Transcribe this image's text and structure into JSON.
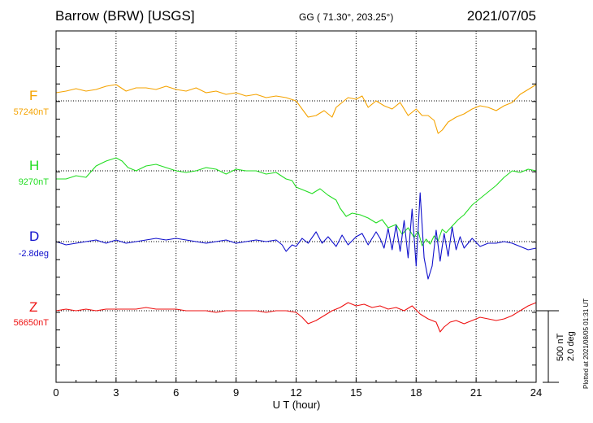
{
  "header": {
    "station": "Barrow (BRW)  [USGS]",
    "coords": "GG ( 71.30°, 203.25°)",
    "date": "2021/07/05"
  },
  "footer": {
    "plotted": "Plotted at 2021/08/05 01:31  UT",
    "scale_nt": "500 nT",
    "scale_deg": "2.0 deg"
  },
  "chart_data": {
    "type": "line",
    "xlabel": "U T (hour)",
    "xlim": [
      0,
      24
    ],
    "xticks": [
      0,
      3,
      6,
      9,
      12,
      15,
      18,
      21,
      24
    ],
    "grid": true,
    "series": [
      {
        "name": "F",
        "baseline_label": "57240nT",
        "color": "#f5a300",
        "x": [
          0,
          0.5,
          1,
          1.5,
          2,
          2.5,
          3,
          3.5,
          4,
          4.5,
          5,
          5.5,
          6,
          6.5,
          7,
          7.5,
          8,
          8.5,
          9,
          9.5,
          10,
          10.5,
          11,
          11.5,
          12,
          12.3,
          12.6,
          13,
          13.4,
          13.8,
          14,
          14.3,
          14.6,
          15,
          15.3,
          15.6,
          16,
          16.4,
          16.8,
          17.2,
          17.6,
          18,
          18.3,
          18.6,
          18.9,
          19.1,
          19.3,
          19.6,
          20,
          20.4,
          20.8,
          21.2,
          21.6,
          22,
          22.4,
          22.8,
          23.2,
          23.6,
          24
        ],
        "y": [
          10,
          12,
          15,
          12,
          14,
          18,
          20,
          12,
          16,
          16,
          14,
          18,
          14,
          12,
          16,
          10,
          12,
          8,
          10,
          6,
          8,
          4,
          6,
          4,
          0,
          -10,
          -20,
          -18,
          -12,
          -20,
          -8,
          -2,
          4,
          2,
          6,
          -8,
          0,
          -6,
          -10,
          -2,
          -18,
          -10,
          -18,
          -18,
          -24,
          -40,
          -36,
          -26,
          -20,
          -16,
          -10,
          -6,
          -8,
          -12,
          -6,
          -2,
          8,
          14,
          20
        ]
      },
      {
        "name": "H",
        "baseline_label": "9270nT",
        "color": "#22dd22",
        "x": [
          0,
          0.5,
          1,
          1.5,
          2,
          2.5,
          3,
          3.3,
          3.6,
          4,
          4.5,
          5,
          5.5,
          6,
          6.5,
          7,
          7.5,
          8,
          8.5,
          9,
          9.5,
          10,
          10.5,
          11,
          11.5,
          11.8,
          12,
          12.4,
          12.8,
          13.2,
          13.6,
          14,
          14.2,
          14.5,
          14.8,
          15.2,
          15.6,
          16,
          16.3,
          16.6,
          17,
          17.3,
          17.6,
          17.9,
          18.1,
          18.3,
          18.5,
          18.7,
          18.9,
          19.1,
          19.3,
          19.5,
          19.8,
          20.1,
          20.4,
          20.8,
          21.2,
          21.6,
          22,
          22.4,
          22.8,
          23.2,
          23.6,
          24
        ],
        "y": [
          -10,
          -10,
          -6,
          -8,
          6,
          12,
          16,
          12,
          4,
          0,
          6,
          8,
          4,
          0,
          -2,
          0,
          4,
          2,
          -4,
          2,
          0,
          0,
          -4,
          -2,
          -10,
          -12,
          -20,
          -24,
          -28,
          -22,
          -30,
          -36,
          -46,
          -56,
          -52,
          -54,
          -58,
          -64,
          -60,
          -70,
          -66,
          -78,
          -70,
          -82,
          -74,
          -92,
          -84,
          -90,
          -80,
          -86,
          -72,
          -76,
          -68,
          -60,
          -54,
          -42,
          -34,
          -26,
          -18,
          -8,
          0,
          -2,
          2,
          0
        ]
      },
      {
        "name": "D",
        "baseline_label": "-2.8deg",
        "color": "#1010cc",
        "x": [
          0,
          0.5,
          1,
          1.5,
          2,
          2.5,
          3,
          3.5,
          4,
          4.5,
          5,
          5.5,
          6,
          6.5,
          7,
          7.5,
          8,
          8.5,
          9,
          9.5,
          10,
          10.5,
          11,
          11.3,
          11.5,
          11.8,
          12,
          12.3,
          12.6,
          13,
          13.3,
          13.6,
          14,
          14.3,
          14.6,
          15,
          15.3,
          15.6,
          16,
          16.2,
          16.4,
          16.6,
          16.8,
          17,
          17.2,
          17.4,
          17.6,
          17.8,
          18,
          18.2,
          18.4,
          18.6,
          18.8,
          19,
          19.2,
          19.4,
          19.6,
          19.8,
          20,
          20.2,
          20.4,
          20.8,
          21.2,
          21.6,
          22,
          22.4,
          22.8,
          23.2,
          23.6,
          24
        ],
        "y": [
          0,
          -4,
          -2,
          0,
          2,
          -2,
          2,
          -2,
          0,
          2,
          4,
          2,
          4,
          2,
          0,
          -2,
          0,
          2,
          -2,
          0,
          2,
          0,
          2,
          -4,
          -12,
          -4,
          -6,
          4,
          -2,
          12,
          -2,
          6,
          -6,
          8,
          -4,
          6,
          10,
          -4,
          12,
          4,
          -8,
          16,
          -10,
          20,
          -12,
          26,
          -20,
          40,
          -30,
          60,
          -20,
          -46,
          -30,
          14,
          -24,
          10,
          -18,
          18,
          -10,
          6,
          -8,
          4,
          -6,
          -2,
          -2,
          0,
          -2,
          -6,
          -10,
          -8
        ]
      },
      {
        "name": "Z",
        "baseline_label": "56650nT",
        "color": "#ee1111",
        "x": [
          0,
          0.5,
          1,
          1.5,
          2,
          2.5,
          3,
          3.5,
          4,
          4.5,
          5,
          5.5,
          6,
          6.5,
          7,
          7.5,
          8,
          8.5,
          9,
          9.5,
          10,
          10.5,
          11,
          11.5,
          12,
          12.3,
          12.6,
          13,
          13.4,
          13.8,
          14.2,
          14.6,
          15,
          15.4,
          15.8,
          16.2,
          16.6,
          17,
          17.4,
          17.8,
          18.2,
          18.6,
          19,
          19.2,
          19.4,
          19.7,
          20,
          20.4,
          20.8,
          21.2,
          21.6,
          22,
          22.4,
          22.8,
          23.2,
          23.6,
          24
        ],
        "y": [
          0,
          2,
          0,
          2,
          0,
          2,
          2,
          2,
          2,
          4,
          2,
          2,
          2,
          0,
          0,
          0,
          -2,
          0,
          0,
          0,
          0,
          -2,
          0,
          0,
          -2,
          -8,
          -16,
          -12,
          -6,
          0,
          4,
          10,
          6,
          8,
          4,
          6,
          2,
          4,
          0,
          6,
          -4,
          -10,
          -14,
          -26,
          -20,
          -14,
          -12,
          -16,
          -12,
          -8,
          -10,
          -12,
          -10,
          -6,
          0,
          6,
          10
        ]
      }
    ]
  }
}
